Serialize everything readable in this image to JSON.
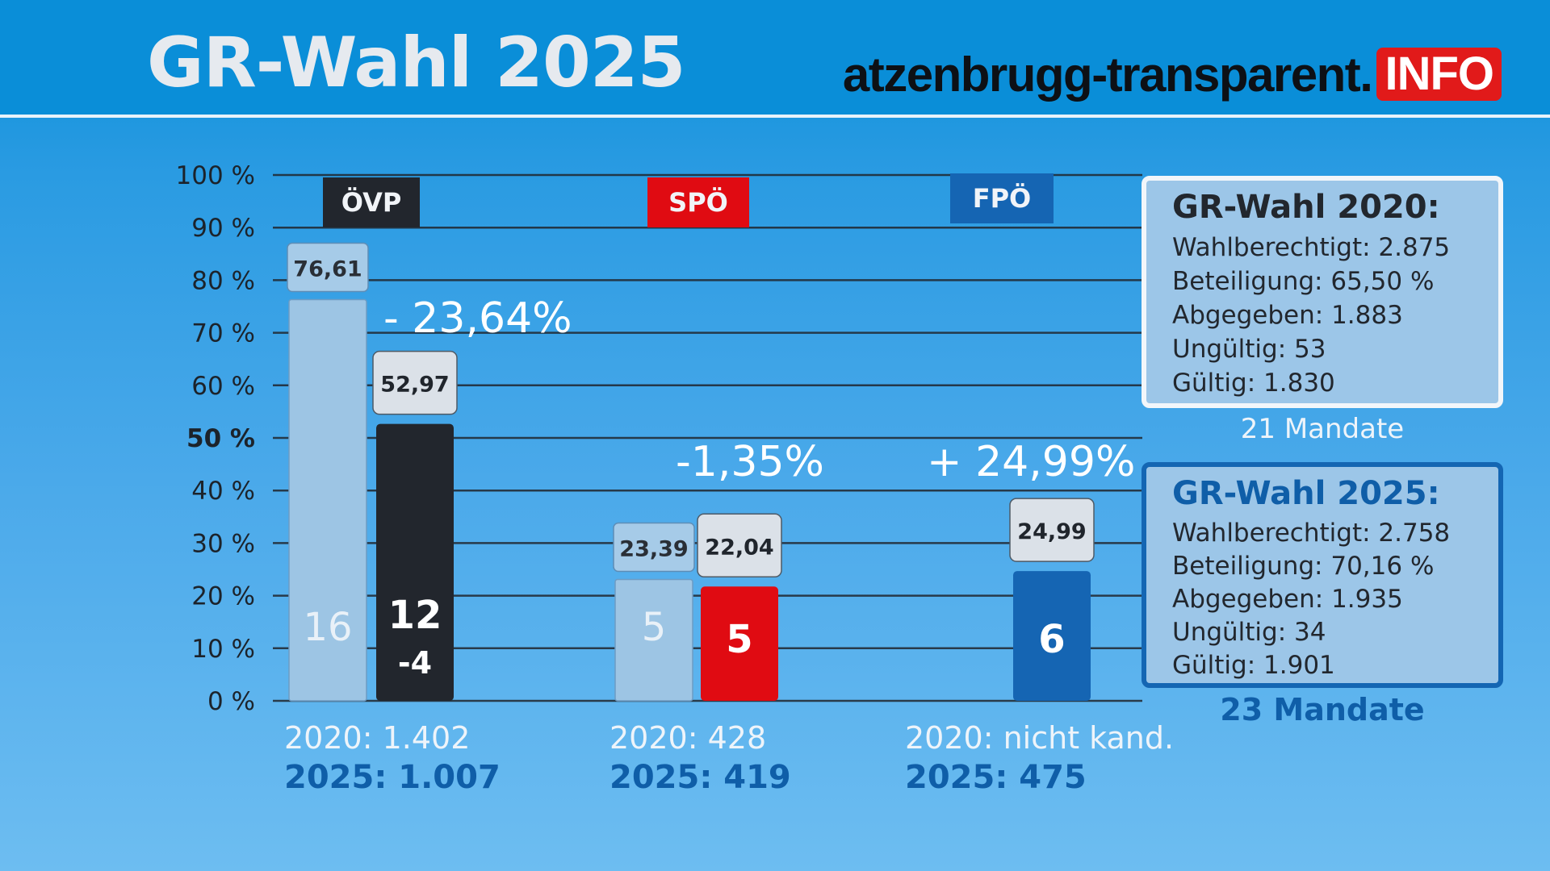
{
  "header": {
    "title": "GR-Wahl 2025",
    "brand": "atzenbrugg-transparent.",
    "brand_badge": "INFO"
  },
  "colors": {
    "oevp": "#22262d",
    "spoe": "#e00b12",
    "fpoe": "#1565b3",
    "prev": "#9dc5e4",
    "accent": "#e11a1a"
  },
  "chart_data": {
    "type": "bar",
    "ylim": [
      0,
      100
    ],
    "yticks": [
      "100 %",
      "90 %",
      "80 %",
      "70 %",
      "60 %",
      "50 %",
      "40 %",
      "30 %",
      "20 %",
      "10 %",
      "0 %"
    ],
    "categories": [
      "ÖVP",
      "SPÖ",
      "FPÖ"
    ],
    "series": [
      {
        "name": "2020",
        "values": [
          76.61,
          23.39,
          null
        ],
        "labels": [
          "76,61",
          "23,39",
          ""
        ],
        "seats": [
          "16",
          "5",
          ""
        ]
      },
      {
        "name": "2025",
        "values": [
          52.97,
          22.04,
          24.99
        ],
        "labels": [
          "52,97",
          "22,04",
          "24,99"
        ],
        "seats": [
          "12",
          "5",
          "6"
        ]
      }
    ],
    "seat_change": [
      "-4",
      "",
      ""
    ],
    "change_labels": [
      "- 23,64%",
      "-1,35%",
      "+ 24,99%"
    ]
  },
  "votes": [
    {
      "v2020": "2020: 1.402",
      "v2025": "2025: 1.007"
    },
    {
      "v2020": "2020: 428",
      "v2025": "2025: 419"
    },
    {
      "v2020": "2020: nicht kand.",
      "v2025": "2025: 475"
    }
  ],
  "box2020": {
    "title": "GR-Wahl 2020:",
    "lines": [
      "Wahlberechtigt: 2.875",
      "Beteiligung: 65,50 %",
      "Abgegeben: 1.883",
      "Ungültig: 53",
      "Gültig: 1.830"
    ],
    "mandate": "21 Mandate"
  },
  "box2025": {
    "title": "GR-Wahl 2025:",
    "lines": [
      "Wahlberechtigt: 2.758",
      "Beteiligung: 70,16 %",
      "Abgegeben: 1.935",
      "Ungültig: 34",
      "Gültig: 1.901"
    ],
    "mandate": "23 Mandate"
  }
}
